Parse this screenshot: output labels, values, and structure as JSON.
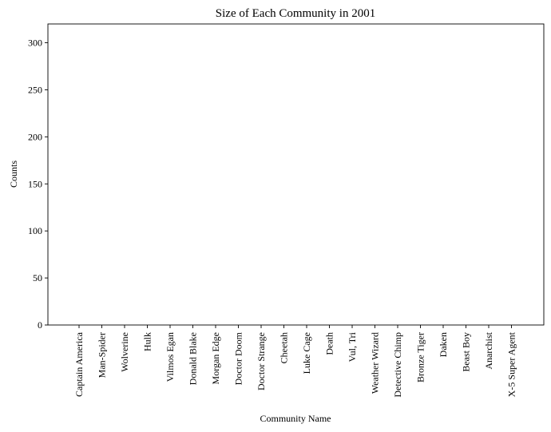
{
  "chart_data": {
    "type": "bar",
    "title": "Size of Each Community in 2001",
    "xlabel": "Community Name",
    "ylabel": "Counts",
    "categories": [
      "Captain America",
      "Man-Spider",
      "Wolverine",
      "Hulk",
      "Vilmos Egan",
      "Donald Blake",
      "Morgan Edge",
      "Doctor Doom",
      "Doctor Strange",
      "Cheetah",
      "Luke Cage",
      "Death",
      "Vul, Tri",
      "Weather Wizard",
      "Detective Chimp",
      "Bronze Tiger",
      "Daken",
      "Beast Boy",
      "Anarchist",
      "X-5 Super Agent"
    ],
    "values": [
      0,
      0,
      0,
      0,
      0,
      0,
      0,
      0,
      0,
      0,
      0,
      0,
      0,
      0,
      0,
      0,
      0,
      0,
      0,
      0
    ],
    "ylim": [
      0,
      320
    ],
    "yticks": [
      0,
      50,
      100,
      150,
      200,
      250,
      300
    ],
    "grid": false,
    "bar_color": "#1f77b4"
  }
}
